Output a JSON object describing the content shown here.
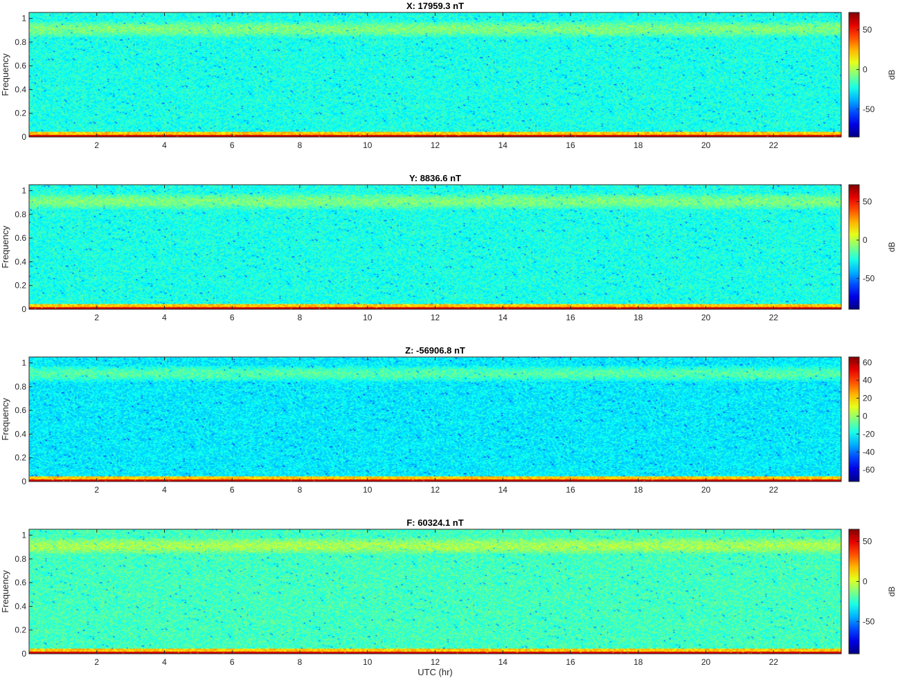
{
  "figure": {
    "xlabel": "UTC (hr)"
  },
  "chart_data": [
    {
      "type": "heatmap",
      "title": "X: 17959.3 nT",
      "ylabel": "Frequency",
      "xlabel": "",
      "xlim": [
        0,
        24
      ],
      "ylim": [
        0,
        1.05
      ],
      "xticks": [
        2,
        4,
        6,
        8,
        10,
        12,
        14,
        16,
        18,
        20,
        22
      ],
      "yticks": [
        0,
        0.2,
        0.4,
        0.6,
        0.8,
        1
      ],
      "colorbar": {
        "label": "dB",
        "range": [
          -85,
          72
        ],
        "ticks": [
          -50,
          0,
          50
        ],
        "colormap": "jet"
      }
    },
    {
      "type": "heatmap",
      "title": "Y: 8836.6 nT",
      "ylabel": "Frequency",
      "xlabel": "",
      "xlim": [
        0,
        24
      ],
      "ylim": [
        0,
        1.05
      ],
      "xticks": [
        2,
        4,
        6,
        8,
        10,
        12,
        14,
        16,
        18,
        20,
        22
      ],
      "yticks": [
        0,
        0.2,
        0.4,
        0.6,
        0.8,
        1
      ],
      "colorbar": {
        "label": "dB",
        "range": [
          -90,
          72
        ],
        "ticks": [
          -50,
          0,
          50
        ],
        "colormap": "jet"
      }
    },
    {
      "type": "heatmap",
      "title": "Z: -56906.8 nT",
      "ylabel": "Frequency",
      "xlabel": "",
      "xlim": [
        0,
        24
      ],
      "ylim": [
        0,
        1.05
      ],
      "xticks": [
        2,
        4,
        6,
        8,
        10,
        12,
        14,
        16,
        18,
        20,
        22
      ],
      "yticks": [
        0,
        0.2,
        0.4,
        0.6,
        0.8,
        1
      ],
      "colorbar": {
        "label": "",
        "range": [
          -73,
          66
        ],
        "ticks": [
          -60,
          -40,
          -20,
          0,
          20,
          40,
          60
        ],
        "colormap": "jet"
      }
    },
    {
      "type": "heatmap",
      "title": "F: 60324.1 nT",
      "ylabel": "Frequency",
      "xlabel": "UTC (hr)",
      "xlim": [
        0,
        24
      ],
      "ylim": [
        0,
        1.05
      ],
      "xticks": [
        2,
        4,
        6,
        8,
        10,
        12,
        14,
        16,
        18,
        20,
        22
      ],
      "yticks": [
        0,
        0.2,
        0.4,
        0.6,
        0.8,
        1
      ],
      "colorbar": {
        "label": "dB",
        "range": [
          -90,
          65
        ],
        "ticks": [
          -50,
          0,
          50
        ],
        "colormap": "jet"
      }
    }
  ]
}
